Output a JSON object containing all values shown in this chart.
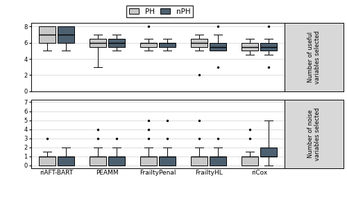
{
  "methods": [
    "riAFT-BART",
    "PEAMM",
    "FrailtyPenal",
    "FrailtyHL",
    "riCox"
  ],
  "ph_color": "#c8c8c8",
  "nph_color": "#4d6070",
  "top_panel": {
    "ylim": [
      0,
      8.5
    ],
    "yticks": [
      0,
      2,
      4,
      6,
      8
    ],
    "ylabel": "Number of useful\nvariables selected",
    "PH": [
      {
        "q1": 6.0,
        "median": 7.0,
        "q3": 8.0,
        "whislo": 5.0,
        "whishi": 8.0,
        "fliers": []
      },
      {
        "q1": 5.5,
        "median": 6.0,
        "q3": 6.5,
        "whislo": 3.0,
        "whishi": 7.0,
        "fliers": []
      },
      {
        "q1": 5.5,
        "median": 6.0,
        "q3": 6.0,
        "whislo": 5.0,
        "whishi": 6.5,
        "fliers": [
          8.0
        ]
      },
      {
        "q1": 5.5,
        "median": 6.0,
        "q3": 6.5,
        "whislo": 5.0,
        "whishi": 7.0,
        "fliers": [
          2.0
        ]
      },
      {
        "q1": 5.0,
        "median": 5.5,
        "q3": 6.0,
        "whislo": 4.5,
        "whishi": 6.5,
        "fliers": []
      }
    ],
    "nPH": [
      {
        "q1": 6.0,
        "median": 7.0,
        "q3": 8.0,
        "whislo": 5.0,
        "whishi": 8.0,
        "fliers": []
      },
      {
        "q1": 5.5,
        "median": 6.0,
        "q3": 6.5,
        "whislo": 5.0,
        "whishi": 7.0,
        "fliers": []
      },
      {
        "q1": 5.5,
        "median": 6.0,
        "q3": 6.0,
        "whislo": 5.0,
        "whishi": 6.5,
        "fliers": []
      },
      {
        "q1": 5.0,
        "median": 5.5,
        "q3": 6.0,
        "whislo": 5.0,
        "whishi": 7.0,
        "fliers": [
          3.0,
          8.0
        ]
      },
      {
        "q1": 5.0,
        "median": 5.5,
        "q3": 6.0,
        "whislo": 4.5,
        "whishi": 6.5,
        "fliers": [
          3.0,
          8.0
        ]
      }
    ]
  },
  "bottom_panel": {
    "ylim": [
      -0.3,
      7.3
    ],
    "yticks": [
      0,
      1,
      2,
      3,
      4,
      5,
      6,
      7
    ],
    "ylabel": "Number of noise\nvariables selected",
    "PH": [
      {
        "q1": 0.0,
        "median": 1.0,
        "q3": 1.0,
        "whislo": 0.0,
        "whishi": 1.5,
        "fliers": [
          3.0
        ]
      },
      {
        "q1": 0.0,
        "median": 1.0,
        "q3": 1.0,
        "whislo": 0.0,
        "whishi": 2.0,
        "fliers": [
          3.0,
          4.0
        ]
      },
      {
        "q1": 0.0,
        "median": 1.0,
        "q3": 1.0,
        "whislo": 0.0,
        "whishi": 2.0,
        "fliers": [
          3.0,
          4.0,
          5.0
        ]
      },
      {
        "q1": 0.0,
        "median": 1.0,
        "q3": 1.0,
        "whislo": 0.0,
        "whishi": 2.0,
        "fliers": [
          3.0,
          5.0
        ]
      },
      {
        "q1": 0.0,
        "median": 1.0,
        "q3": 1.0,
        "whislo": 0.0,
        "whishi": 1.5,
        "fliers": [
          3.0,
          4.0
        ]
      }
    ],
    "nPH": [
      {
        "q1": 0.0,
        "median": 1.0,
        "q3": 1.0,
        "whislo": 0.0,
        "whishi": 2.0,
        "fliers": []
      },
      {
        "q1": 0.0,
        "median": 1.0,
        "q3": 1.0,
        "whislo": 0.0,
        "whishi": 2.0,
        "fliers": [
          3.0
        ]
      },
      {
        "q1": 0.0,
        "median": 1.0,
        "q3": 1.0,
        "whislo": 0.0,
        "whishi": 2.0,
        "fliers": [
          3.0,
          5.0
        ]
      },
      {
        "q1": 0.0,
        "median": 1.0,
        "q3": 1.0,
        "whislo": 0.0,
        "whishi": 2.0,
        "fliers": [
          3.0
        ]
      },
      {
        "q1": 1.0,
        "median": 1.0,
        "q3": 2.0,
        "whislo": 0.0,
        "whishi": 5.0,
        "fliers": []
      }
    ]
  }
}
